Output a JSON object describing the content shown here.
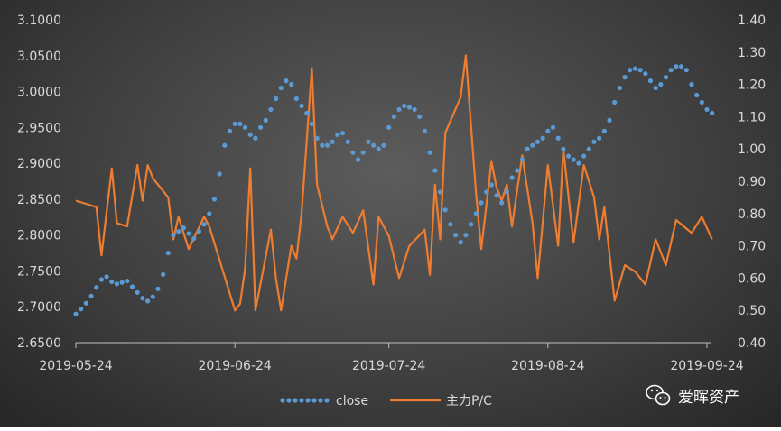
{
  "chart_data": {
    "type": "line",
    "title": "",
    "x_ticks": [
      "2019-05-24",
      "2019-06-24",
      "2019-07-24",
      "2019-08-24",
      "2019-09-24"
    ],
    "y_left": {
      "min": 2.65,
      "max": 3.1,
      "step": 0.05,
      "decimals": 4
    },
    "y_right": {
      "min": 0.4,
      "max": 1.4,
      "step": 0.1,
      "decimals": 2
    },
    "legend_position": "bottom",
    "series": [
      {
        "name": "close",
        "axis": "left",
        "style": "dotted",
        "color": "#5b9bd5",
        "x": [
          "2019-05-24",
          "2019-05-25",
          "2019-05-26",
          "2019-05-27",
          "2019-05-28",
          "2019-05-29",
          "2019-05-30",
          "2019-05-31",
          "2019-06-01",
          "2019-06-02",
          "2019-06-03",
          "2019-06-04",
          "2019-06-05",
          "2019-06-06",
          "2019-06-07",
          "2019-06-08",
          "2019-06-09",
          "2019-06-10",
          "2019-06-11",
          "2019-06-12",
          "2019-06-13",
          "2019-06-14",
          "2019-06-15",
          "2019-06-16",
          "2019-06-17",
          "2019-06-18",
          "2019-06-19",
          "2019-06-20",
          "2019-06-21",
          "2019-06-22",
          "2019-06-23",
          "2019-06-24",
          "2019-06-25",
          "2019-06-26",
          "2019-06-27",
          "2019-06-28",
          "2019-06-29",
          "2019-06-30",
          "2019-07-01",
          "2019-07-02",
          "2019-07-03",
          "2019-07-04",
          "2019-07-05",
          "2019-07-06",
          "2019-07-07",
          "2019-07-08",
          "2019-07-09",
          "2019-07-10",
          "2019-07-11",
          "2019-07-12",
          "2019-07-13",
          "2019-07-14",
          "2019-07-15",
          "2019-07-16",
          "2019-07-17",
          "2019-07-18",
          "2019-07-19",
          "2019-07-20",
          "2019-07-21",
          "2019-07-22",
          "2019-07-23",
          "2019-07-24",
          "2019-07-25",
          "2019-07-26",
          "2019-07-27",
          "2019-07-28",
          "2019-07-29",
          "2019-07-30",
          "2019-07-31",
          "2019-08-01",
          "2019-08-02",
          "2019-08-03",
          "2019-08-04",
          "2019-08-05",
          "2019-08-06",
          "2019-08-07",
          "2019-08-08",
          "2019-08-09",
          "2019-08-10",
          "2019-08-11",
          "2019-08-12",
          "2019-08-13",
          "2019-08-14",
          "2019-08-15",
          "2019-08-16",
          "2019-08-17",
          "2019-08-18",
          "2019-08-19",
          "2019-08-20",
          "2019-08-21",
          "2019-08-22",
          "2019-08-23",
          "2019-08-24",
          "2019-08-25",
          "2019-08-26",
          "2019-08-27",
          "2019-08-28",
          "2019-08-29",
          "2019-08-30",
          "2019-08-31",
          "2019-09-01",
          "2019-09-02",
          "2019-09-03",
          "2019-09-04",
          "2019-09-05",
          "2019-09-06",
          "2019-09-07",
          "2019-09-08",
          "2019-09-09",
          "2019-09-10",
          "2019-09-11",
          "2019-09-12",
          "2019-09-13",
          "2019-09-14",
          "2019-09-15",
          "2019-09-16",
          "2019-09-17",
          "2019-09-18",
          "2019-09-19",
          "2019-09-20",
          "2019-09-21",
          "2019-09-22",
          "2019-09-23",
          "2019-09-24",
          "2019-09-25"
        ],
        "y": [
          2.69,
          2.697,
          2.705,
          2.715,
          2.727,
          2.738,
          2.742,
          2.735,
          2.732,
          2.734,
          2.736,
          2.728,
          2.72,
          2.712,
          2.708,
          2.714,
          2.725,
          2.745,
          2.775,
          2.8,
          2.805,
          2.81,
          2.802,
          2.795,
          2.805,
          2.815,
          2.83,
          2.85,
          2.885,
          2.925,
          2.945,
          2.955,
          2.955,
          2.95,
          2.94,
          2.935,
          2.95,
          2.96,
          2.975,
          2.99,
          3.005,
          3.015,
          3.01,
          2.99,
          2.98,
          2.97,
          2.955,
          2.935,
          2.925,
          2.925,
          2.93,
          2.94,
          2.942,
          2.93,
          2.915,
          2.905,
          2.915,
          2.93,
          2.925,
          2.92,
          2.925,
          2.95,
          2.965,
          2.975,
          2.98,
          2.978,
          2.975,
          2.965,
          2.945,
          2.915,
          2.89,
          2.86,
          2.835,
          2.815,
          2.8,
          2.79,
          2.8,
          2.815,
          2.83,
          2.845,
          2.86,
          2.87,
          2.855,
          2.845,
          2.86,
          2.88,
          2.89,
          2.905,
          2.92,
          2.925,
          2.93,
          2.935,
          2.945,
          2.95,
          2.935,
          2.92,
          2.91,
          2.905,
          2.9,
          2.91,
          2.92,
          2.93,
          2.935,
          2.945,
          2.96,
          2.985,
          3.005,
          3.02,
          3.03,
          3.032,
          3.03,
          3.025,
          3.015,
          3.005,
          3.01,
          3.02,
          3.03,
          3.035,
          3.035,
          3.03,
          3.01,
          2.995,
          2.985,
          2.975,
          2.97
        ],
        "unit": "index"
      },
      {
        "name": "主力P/C",
        "axis": "right",
        "style": "solid",
        "color": "#ed7d31",
        "x": [
          "2019-05-24",
          "2019-05-28",
          "2019-05-29",
          "2019-05-31",
          "2019-06-01",
          "2019-06-03",
          "2019-06-05",
          "2019-06-06",
          "2019-06-07",
          "2019-06-08",
          "2019-06-11",
          "2019-06-12",
          "2019-06-13",
          "2019-06-15",
          "2019-06-18",
          "2019-06-19",
          "2019-06-24",
          "2019-06-25",
          "2019-06-26",
          "2019-06-27",
          "2019-06-28",
          "2019-07-01",
          "2019-07-02",
          "2019-07-03",
          "2019-07-05",
          "2019-07-06",
          "2019-07-07",
          "2019-07-09",
          "2019-07-10",
          "2019-07-12",
          "2019-07-13",
          "2019-07-15",
          "2019-07-17",
          "2019-07-19",
          "2019-07-21",
          "2019-07-22",
          "2019-07-24",
          "2019-07-26",
          "2019-07-28",
          "2019-07-31",
          "2019-08-01",
          "2019-08-02",
          "2019-08-03",
          "2019-08-04",
          "2019-08-07",
          "2019-08-08",
          "2019-08-10",
          "2019-08-11",
          "2019-08-13",
          "2019-08-14",
          "2019-08-15",
          "2019-08-16",
          "2019-08-17",
          "2019-08-19",
          "2019-08-21",
          "2019-08-22",
          "2019-08-24",
          "2019-08-26",
          "2019-08-27",
          "2019-08-29",
          "2019-08-31",
          "2019-09-02",
          "2019-09-03",
          "2019-09-04",
          "2019-09-06",
          "2019-09-08",
          "2019-09-10",
          "2019-09-12",
          "2019-09-14",
          "2019-09-16",
          "2019-09-18",
          "2019-09-21",
          "2019-09-23",
          "2019-09-25"
        ],
        "y": [
          0.84,
          0.82,
          0.67,
          0.94,
          0.77,
          0.76,
          0.95,
          0.84,
          0.95,
          0.91,
          0.85,
          0.72,
          0.79,
          0.69,
          0.79,
          0.76,
          0.5,
          0.52,
          0.63,
          0.94,
          0.5,
          0.75,
          0.6,
          0.5,
          0.7,
          0.66,
          0.8,
          1.25,
          0.89,
          0.76,
          0.72,
          0.79,
          0.74,
          0.81,
          0.58,
          0.79,
          0.73,
          0.6,
          0.7,
          0.75,
          0.61,
          0.89,
          0.72,
          1.05,
          1.16,
          1.29,
          0.86,
          0.69,
          0.96,
          0.88,
          0.84,
          0.89,
          0.76,
          0.98,
          0.77,
          0.6,
          0.95,
          0.7,
          1.0,
          0.71,
          0.95,
          0.85,
          0.72,
          0.82,
          0.53,
          0.64,
          0.62,
          0.58,
          0.72,
          0.64,
          0.78,
          0.74,
          0.79,
          0.72
        ],
        "unit": "ratio"
      }
    ]
  },
  "watermark": {
    "text": "爱晖资产",
    "icon": "wechat-icon"
  }
}
